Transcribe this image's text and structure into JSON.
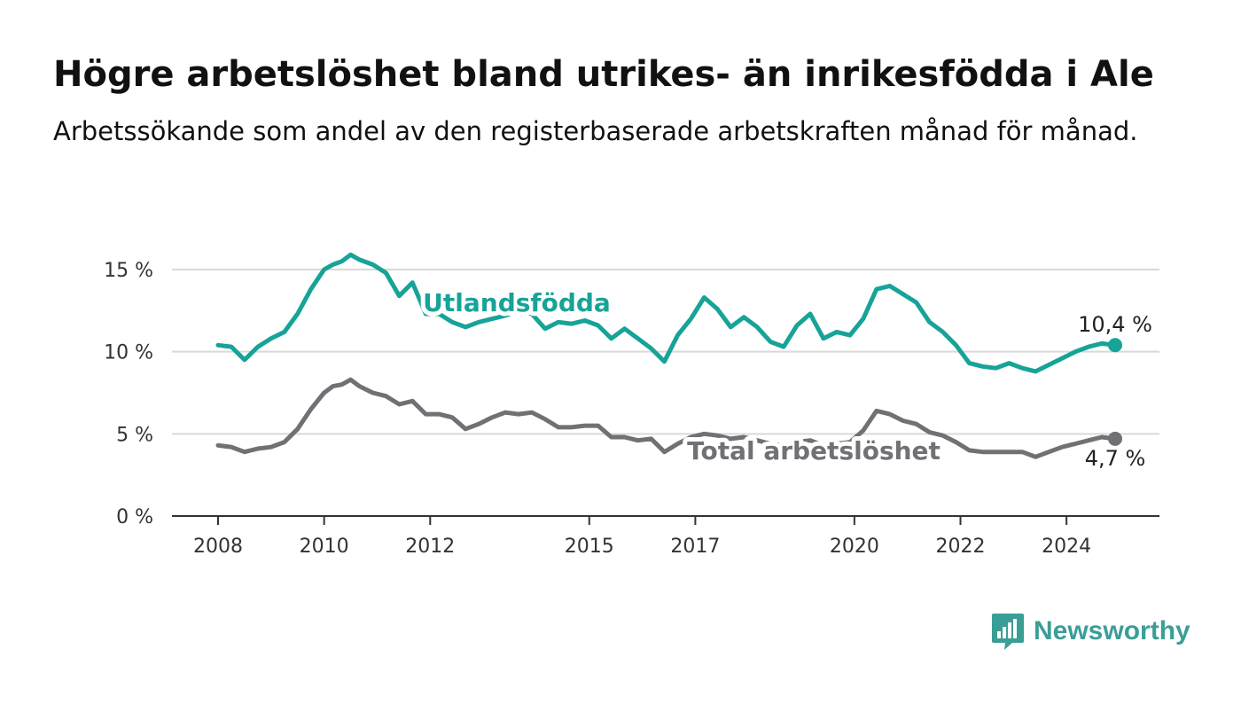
{
  "title": "Högre arbetslöshet bland utrikes- än inrikesfödda i Ale",
  "subtitle": "Arbetssökande som andel av den registerbaserade arbetskraften månad för månad.",
  "brand": "Newsworthy",
  "colors": {
    "foreign_born": "#17a398",
    "total": "#707075",
    "grid": "#d9d9d9",
    "axis": "#333333"
  },
  "chart_data": {
    "type": "line",
    "x_ticks": [
      "2008",
      "2010",
      "2012",
      "2015",
      "2017",
      "2020",
      "2022",
      "2024"
    ],
    "y_ticks": [
      "0 %",
      "5 %",
      "10 %",
      "15 %"
    ],
    "ylim": [
      0,
      15
    ],
    "xlim": [
      "2008-01",
      "2024-12"
    ],
    "grid": true,
    "series": [
      {
        "name": "Utlandsfödda",
        "color": "#17a398",
        "end_label": "10,4 %",
        "points": [
          [
            "2008-01",
            10.4
          ],
          [
            "2008-04",
            10.3
          ],
          [
            "2008-07",
            9.5
          ],
          [
            "2008-10",
            10.3
          ],
          [
            "2009-01",
            10.8
          ],
          [
            "2009-04",
            11.2
          ],
          [
            "2009-07",
            12.3
          ],
          [
            "2009-10",
            13.8
          ],
          [
            "2010-01",
            15.0
          ],
          [
            "2010-03",
            15.3
          ],
          [
            "2010-05",
            15.5
          ],
          [
            "2010-07",
            15.9
          ],
          [
            "2010-09",
            15.6
          ],
          [
            "2010-12",
            15.3
          ],
          [
            "2011-03",
            14.8
          ],
          [
            "2011-06",
            13.4
          ],
          [
            "2011-09",
            14.2
          ],
          [
            "2011-12",
            12.3
          ],
          [
            "2012-03",
            12.3
          ],
          [
            "2012-06",
            11.8
          ],
          [
            "2012-09",
            11.5
          ],
          [
            "2012-12",
            11.8
          ],
          [
            "2013-03",
            12.0
          ],
          [
            "2013-06",
            12.2
          ],
          [
            "2013-09",
            12.5
          ],
          [
            "2013-12",
            12.3
          ],
          [
            "2014-03",
            11.4
          ],
          [
            "2014-06",
            11.8
          ],
          [
            "2014-09",
            11.7
          ],
          [
            "2014-12",
            11.9
          ],
          [
            "2015-03",
            11.6
          ],
          [
            "2015-06",
            10.8
          ],
          [
            "2015-09",
            11.4
          ],
          [
            "2015-12",
            10.8
          ],
          [
            "2016-03",
            10.2
          ],
          [
            "2016-06",
            9.4
          ],
          [
            "2016-09",
            11.0
          ],
          [
            "2016-12",
            12.0
          ],
          [
            "2017-03",
            13.3
          ],
          [
            "2017-06",
            12.6
          ],
          [
            "2017-09",
            11.5
          ],
          [
            "2017-12",
            12.1
          ],
          [
            "2018-03",
            11.5
          ],
          [
            "2018-06",
            10.6
          ],
          [
            "2018-09",
            10.3
          ],
          [
            "2018-12",
            11.6
          ],
          [
            "2019-03",
            12.3
          ],
          [
            "2019-06",
            10.8
          ],
          [
            "2019-09",
            11.2
          ],
          [
            "2019-12",
            11.0
          ],
          [
            "2020-03",
            12.0
          ],
          [
            "2020-06",
            13.8
          ],
          [
            "2020-09",
            14.0
          ],
          [
            "2020-12",
            13.5
          ],
          [
            "2021-03",
            13.0
          ],
          [
            "2021-06",
            11.8
          ],
          [
            "2021-09",
            11.2
          ],
          [
            "2021-12",
            10.4
          ],
          [
            "2022-03",
            9.3
          ],
          [
            "2022-06",
            9.1
          ],
          [
            "2022-09",
            9.0
          ],
          [
            "2022-12",
            9.3
          ],
          [
            "2023-03",
            9.0
          ],
          [
            "2023-06",
            8.8
          ],
          [
            "2023-09",
            9.2
          ],
          [
            "2023-12",
            9.6
          ],
          [
            "2024-03",
            10.0
          ],
          [
            "2024-06",
            10.3
          ],
          [
            "2024-09",
            10.5
          ],
          [
            "2024-12",
            10.4
          ]
        ]
      },
      {
        "name": "Total arbetslöshet",
        "color": "#707075",
        "end_label": "4,7 %",
        "points": [
          [
            "2008-01",
            4.3
          ],
          [
            "2008-04",
            4.2
          ],
          [
            "2008-07",
            3.9
          ],
          [
            "2008-10",
            4.1
          ],
          [
            "2009-01",
            4.2
          ],
          [
            "2009-04",
            4.5
          ],
          [
            "2009-07",
            5.3
          ],
          [
            "2009-10",
            6.5
          ],
          [
            "2010-01",
            7.5
          ],
          [
            "2010-03",
            7.9
          ],
          [
            "2010-05",
            8.0
          ],
          [
            "2010-07",
            8.3
          ],
          [
            "2010-09",
            7.9
          ],
          [
            "2010-12",
            7.5
          ],
          [
            "2011-03",
            7.3
          ],
          [
            "2011-06",
            6.8
          ],
          [
            "2011-09",
            7.0
          ],
          [
            "2011-12",
            6.2
          ],
          [
            "2012-03",
            6.2
          ],
          [
            "2012-06",
            6.0
          ],
          [
            "2012-09",
            5.3
          ],
          [
            "2012-12",
            5.6
          ],
          [
            "2013-03",
            6.0
          ],
          [
            "2013-06",
            6.3
          ],
          [
            "2013-09",
            6.2
          ],
          [
            "2013-12",
            6.3
          ],
          [
            "2014-03",
            5.9
          ],
          [
            "2014-06",
            5.4
          ],
          [
            "2014-09",
            5.4
          ],
          [
            "2014-12",
            5.5
          ],
          [
            "2015-03",
            5.5
          ],
          [
            "2015-06",
            4.8
          ],
          [
            "2015-09",
            4.8
          ],
          [
            "2015-12",
            4.6
          ],
          [
            "2016-03",
            4.7
          ],
          [
            "2016-06",
            3.9
          ],
          [
            "2016-09",
            4.4
          ],
          [
            "2016-12",
            4.8
          ],
          [
            "2017-03",
            5.0
          ],
          [
            "2017-06",
            4.9
          ],
          [
            "2017-09",
            4.7
          ],
          [
            "2017-12",
            4.8
          ],
          [
            "2018-03",
            4.6
          ],
          [
            "2018-06",
            4.4
          ],
          [
            "2018-09",
            4.3
          ],
          [
            "2018-12",
            4.5
          ],
          [
            "2019-03",
            4.6
          ],
          [
            "2019-06",
            4.3
          ],
          [
            "2019-09",
            4.4
          ],
          [
            "2019-12",
            4.5
          ],
          [
            "2020-03",
            5.2
          ],
          [
            "2020-06",
            6.4
          ],
          [
            "2020-09",
            6.2
          ],
          [
            "2020-12",
            5.8
          ],
          [
            "2021-03",
            5.6
          ],
          [
            "2021-06",
            5.1
          ],
          [
            "2021-09",
            4.9
          ],
          [
            "2021-12",
            4.5
          ],
          [
            "2022-03",
            4.0
          ],
          [
            "2022-06",
            3.9
          ],
          [
            "2022-09",
            3.9
          ],
          [
            "2022-12",
            3.9
          ],
          [
            "2023-03",
            3.9
          ],
          [
            "2023-06",
            3.6
          ],
          [
            "2023-09",
            3.9
          ],
          [
            "2023-12",
            4.2
          ],
          [
            "2024-03",
            4.4
          ],
          [
            "2024-06",
            4.6
          ],
          [
            "2024-09",
            4.8
          ],
          [
            "2024-12",
            4.7
          ]
        ]
      }
    ]
  }
}
